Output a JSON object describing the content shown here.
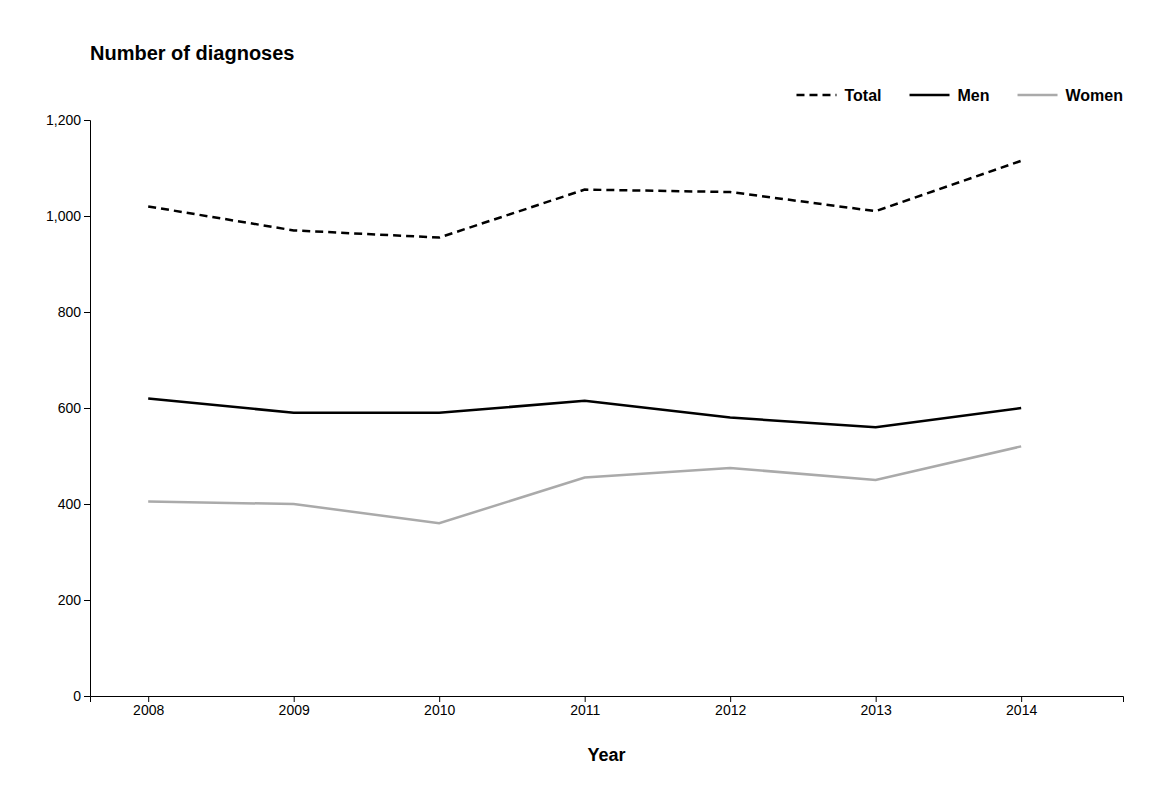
{
  "chart_data": {
    "type": "line",
    "x_label": "Year",
    "y_label": "Number of diagnoses",
    "x": [
      2008,
      2009,
      2010,
      2011,
      2012,
      2013,
      2014
    ],
    "series": [
      {
        "name": "Total",
        "color": "#000000",
        "line_style": "dashed",
        "values": [
          1020,
          970,
          955,
          1055,
          1050,
          1010,
          1115
        ]
      },
      {
        "name": "Men",
        "color": "#000000",
        "line_style": "solid",
        "values": [
          620,
          590,
          590,
          615,
          580,
          560,
          600
        ]
      },
      {
        "name": "Women",
        "color": "#aaaaaa",
        "line_style": "solid",
        "values": [
          405,
          400,
          360,
          455,
          475,
          450,
          520
        ]
      }
    ],
    "xlim": [
      2007.6,
      2014.7
    ],
    "xticks": [
      2008,
      2009,
      2010,
      2011,
      2012,
      2013,
      2014
    ],
    "ylim": [
      0,
      1200
    ],
    "yticks": [
      0,
      200,
      400,
      600,
      800,
      {
        "value": 1000,
        "label": "1,000"
      },
      {
        "value": 1200,
        "label": "1,200"
      }
    ],
    "grid": false,
    "legend": "upper-right"
  }
}
